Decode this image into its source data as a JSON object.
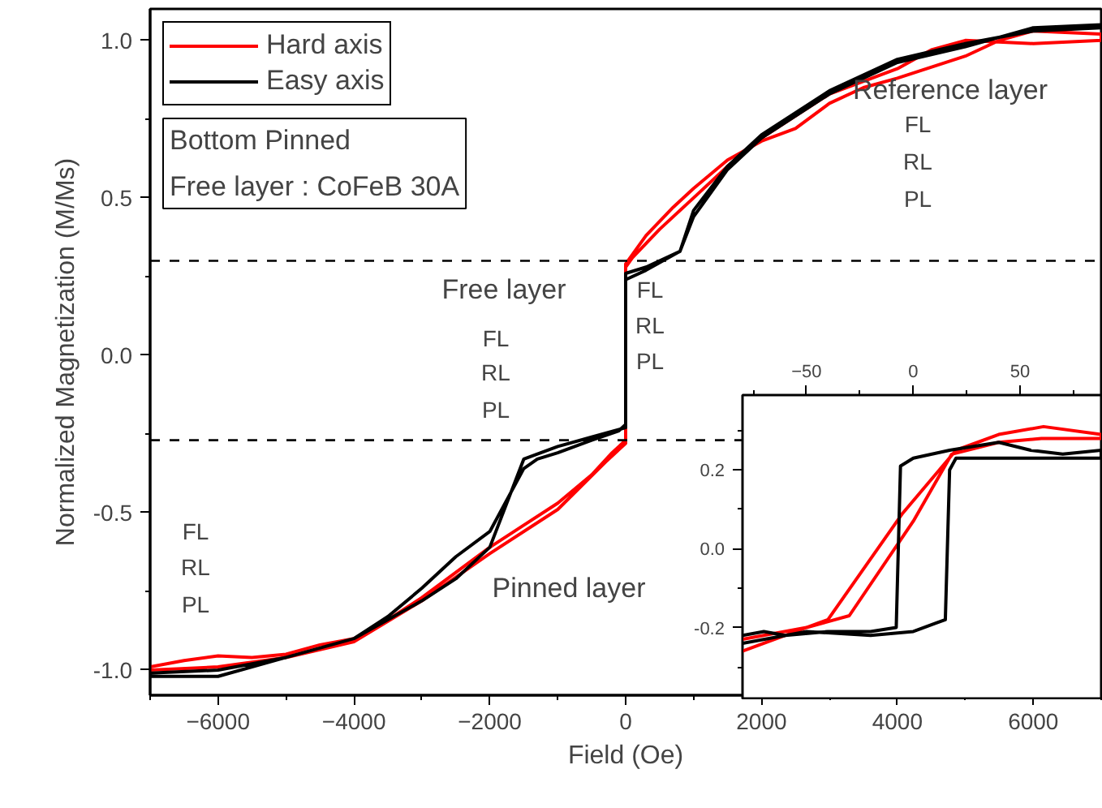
{
  "chart_data": [
    {
      "type": "line",
      "xlabel": "Field (Oe)",
      "ylabel": "Normalized Magnetization (M/Ms)",
      "xlim": [
        -7000,
        7000
      ],
      "ylim": [
        -1.08,
        1.1
      ],
      "xticks": [
        -6000,
        -4000,
        -2000,
        0,
        2000,
        4000,
        6000
      ],
      "yticks": [
        {
          "value": -1,
          "label": "-1.0"
        },
        {
          "value": -0.5,
          "label": "-0.5"
        },
        {
          "value": 0,
          "label": "0.0"
        },
        {
          "value": 0.5,
          "label": "0.5"
        },
        {
          "value": 1,
          "label": "1.0"
        }
      ],
      "grid": false,
      "legend": "top left",
      "series": [
        {
          "name": "Hard axis",
          "color": "#ff0000",
          "x": [
            -7000,
            -6500,
            -6000,
            -5500,
            -5000,
            -4500,
            -4000,
            -3500,
            -3000,
            -2500,
            -2000,
            -1500,
            -1000,
            -500,
            -200,
            0,
            0,
            300,
            700,
            1000,
            1500,
            2000,
            2500,
            3000,
            3500,
            4000,
            5000,
            5500,
            6000,
            7000,
            7000,
            6000,
            5000,
            4500,
            4000,
            3000,
            2000,
            1500,
            1000,
            500,
            100,
            0,
            0,
            -300,
            -1000,
            -2000,
            -3000,
            -4000,
            -5000,
            -6000,
            -7000
          ],
          "values": [
            -0.99,
            -0.97,
            -0.955,
            -0.96,
            -0.95,
            -0.92,
            -0.9,
            -0.84,
            -0.77,
            -0.69,
            -0.61,
            -0.54,
            -0.47,
            -0.38,
            -0.31,
            -0.27,
            0.29,
            0.38,
            0.47,
            0.53,
            0.62,
            0.68,
            0.72,
            0.8,
            0.85,
            0.88,
            0.95,
            1.0,
            1.03,
            1.02,
            1.0,
            0.99,
            1.0,
            0.97,
            0.91,
            0.83,
            0.69,
            0.6,
            0.5,
            0.4,
            0.31,
            0.28,
            -0.28,
            -0.34,
            -0.49,
            -0.63,
            -0.78,
            -0.91,
            -0.96,
            -0.99,
            -1.0
          ]
        },
        {
          "name": "Easy axis",
          "color": "#000000",
          "x": [
            -7000,
            -6000,
            -5000,
            -4000,
            -3500,
            -3000,
            -2500,
            -2000,
            -1500,
            -1300,
            -1000,
            -500,
            -100,
            0,
            0,
            300,
            800,
            1000,
            1500,
            2000,
            3000,
            4000,
            5000,
            6000,
            7000,
            7000,
            6000,
            5000,
            4000,
            3000,
            2000,
            1500,
            1000,
            800,
            300,
            0,
            0,
            -500,
            -1000,
            -1500,
            -2000,
            -2500,
            -3000,
            -4000,
            -5000,
            -6000,
            -7000
          ],
          "values": [
            -1.02,
            -1.02,
            -0.96,
            -0.9,
            -0.83,
            -0.74,
            -0.64,
            -0.56,
            -0.36,
            -0.33,
            -0.31,
            -0.27,
            -0.24,
            -0.22,
            0.26,
            0.28,
            0.33,
            0.44,
            0.59,
            0.69,
            0.83,
            0.93,
            0.98,
            1.04,
            1.05,
            1.04,
            1.03,
            0.99,
            0.94,
            0.84,
            0.7,
            0.6,
            0.46,
            0.33,
            0.27,
            0.24,
            -0.23,
            -0.26,
            -0.29,
            -0.33,
            -0.61,
            -0.71,
            -0.78,
            -0.9,
            -0.96,
            -1.0,
            -1.01
          ]
        }
      ],
      "ref_lines": [
        {
          "axis": "y",
          "value": 0.3,
          "line_style": "dashed",
          "color": "#000000"
        },
        {
          "axis": "y",
          "value": -0.27,
          "line_style": "dashed",
          "color": "#000000"
        }
      ],
      "annotations": [
        "Reference layer",
        "Free layer",
        "Pinned layer",
        "FL",
        "RL",
        "PL",
        "FL",
        "RL",
        "PL",
        "FL",
        "RL",
        "PL",
        "FL",
        "RL",
        "PL",
        "Bottom Pinned\nFree layer : CoFeB 30A"
      ]
    },
    {
      "type": "line",
      "xlim": [
        -80,
        88
      ],
      "ylim": [
        -0.38,
        0.39
      ],
      "xticks": [
        -50,
        0,
        50
      ],
      "yticks": [
        {
          "value": -0.2,
          "label": "-0.2"
        },
        {
          "value": 0,
          "label": "0.0"
        },
        {
          "value": 0.2,
          "label": "0.2"
        }
      ],
      "grid": false,
      "series": [
        {
          "color": "#ff0000",
          "x": [
            -80,
            -40,
            -5,
            20,
            40,
            61,
            88,
            88,
            60,
            40,
            18,
            0,
            -30,
            -50,
            -80
          ],
          "values": [
            -0.26,
            -0.18,
            0.09,
            0.25,
            0.29,
            0.31,
            0.29,
            0.28,
            0.28,
            0.27,
            0.24,
            0.07,
            -0.17,
            -0.2,
            -0.23
          ]
        },
        {
          "color": "#000000",
          "x": [
            -80,
            -70,
            -60,
            -40,
            -20,
            -8,
            -6,
            0,
            17,
            40,
            55,
            70,
            88,
            88,
            50,
            20,
            17,
            15,
            10,
            0,
            -20,
            -50,
            -80
          ],
          "values": [
            -0.22,
            -0.21,
            -0.22,
            -0.21,
            -0.21,
            -0.2,
            0.21,
            0.23,
            0.25,
            0.27,
            0.25,
            0.24,
            0.25,
            0.23,
            0.23,
            0.23,
            0.2,
            -0.18,
            -0.19,
            -0.21,
            -0.22,
            -0.21,
            -0.24
          ]
        }
      ]
    }
  ]
}
